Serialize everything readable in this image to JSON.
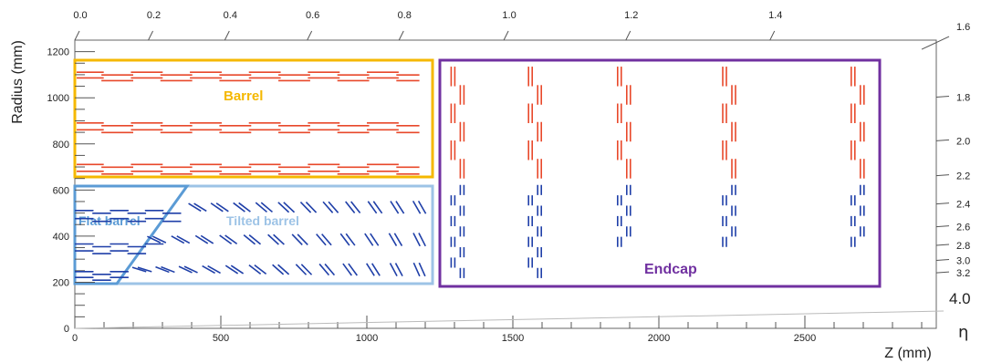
{
  "y_axis": {
    "title": "Radius (mm)",
    "ticks": [
      "0",
      "200",
      "400",
      "600",
      "800",
      "1000",
      "1200"
    ],
    "range": [
      0,
      1250
    ]
  },
  "x_axis": {
    "title": "Z (mm)",
    "ticks": [
      "0",
      "500",
      "1000",
      "1500",
      "2000",
      "2500"
    ],
    "range": [
      0,
      2950
    ]
  },
  "eta_axis": {
    "symbol": "η",
    "top_ticks": [
      "0.0",
      "0.2",
      "0.4",
      "0.6",
      "0.8",
      "1.0",
      "1.2",
      "1.4"
    ],
    "right_ticks": [
      "1.6",
      "1.8",
      "2.0",
      "2.2",
      "2.4",
      "2.6",
      "2.8",
      "3.0",
      "3.2"
    ],
    "max_label": "4.0"
  },
  "regions": {
    "barrel": {
      "label": "Barrel",
      "color": "#f5b800"
    },
    "endcap": {
      "label": "Endcap",
      "color": "#7030a0"
    },
    "flat_barrel": {
      "label": "Flat barrel",
      "color": "#5b9bd5"
    },
    "tilted_barrel": {
      "label": "Tilted barrel",
      "color": "#9dc3e6"
    }
  },
  "colors": {
    "outer_modules": "#e8482a",
    "inner_modules": "#1f3fa8",
    "axis": "#555555"
  }
}
